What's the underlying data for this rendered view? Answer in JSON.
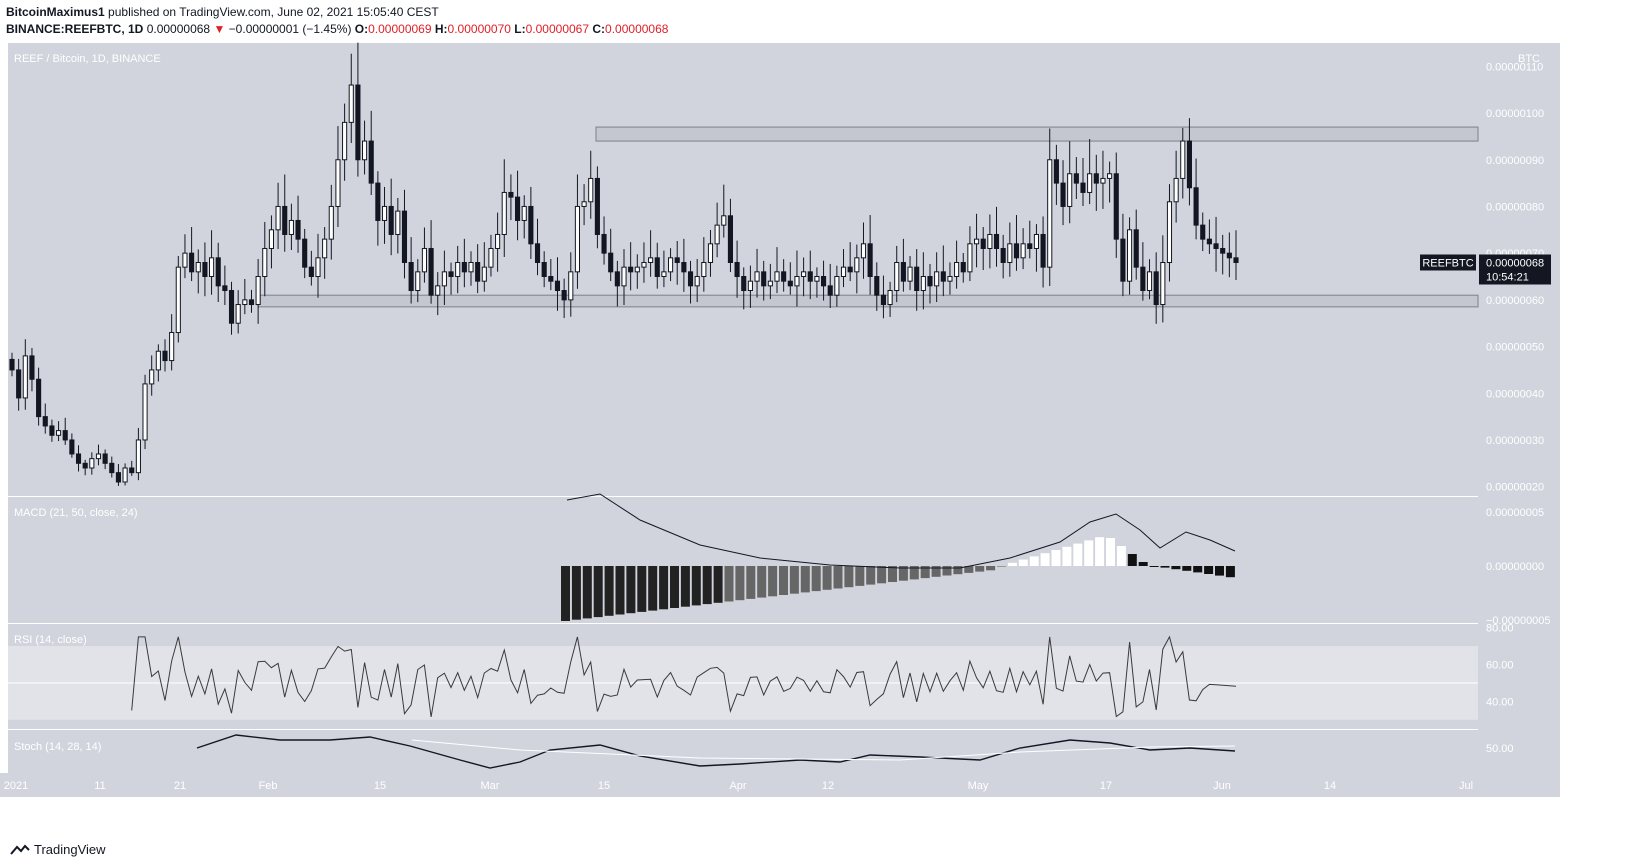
{
  "header": {
    "author": "BitcoinMaximus1",
    "published_text": "published on TradingView.com, June 02, 2021 15:05:40 CEST",
    "symbol_line": "BINANCE:REEFBTC, 1D",
    "last_price": "0.00000068",
    "change_arrow": "▼",
    "change": "−0.00000001 (−1.45%)",
    "o_label": "O:",
    "o_value": "0.00000069",
    "h_label": "H:",
    "h_value": "0.00000070",
    "l_label": "L:",
    "l_value": "0.00000067",
    "c_label": "C:",
    "c_value": "0.00000068"
  },
  "colors": {
    "pane_bg": "#d1d4dc",
    "band_light": "#e1e3e9",
    "candle_up": "#ffffff",
    "candle_down": "#131722",
    "label_bg": "#131722",
    "axis_text": "#ffffff"
  },
  "chart_data": [
    {
      "type": "candlestick",
      "title": "REEF / Bitcoin, 1D, BINANCE",
      "currency_label": "BTC",
      "price_tag": "REEFBTC",
      "price_tag_value": "0.00000068",
      "countdown": "10:54:21",
      "y_tick_labels": [
        "0.00000110",
        "0.00000100",
        "0.00000090",
        "0.00000080",
        "0.00000070",
        "0.00000060",
        "0.00000050",
        "0.00000040",
        "0.00000030",
        "0.00000020"
      ],
      "ylim": [
        1.8e-07,
        1.15e-06
      ],
      "x_tick_labels": [
        "2021",
        "11",
        "21",
        "Feb",
        "15",
        "Mar",
        "15",
        "Apr",
        "12",
        "May",
        "17",
        "Jun",
        "14",
        "Jul"
      ],
      "zones": [
        {
          "from": 9.4e-07,
          "to": 9.7e-07
        },
        {
          "from": 5.85e-07,
          "to": 6.1e-07
        }
      ],
      "closes": [
        4.5e-07,
        3.9e-07,
        4.8e-07,
        4.3e-07,
        3.5e-07,
        3.3e-07,
        3.1e-07,
        3.2e-07,
        3e-07,
        2.7e-07,
        2.5e-07,
        2.4e-07,
        2.6e-07,
        2.7e-07,
        2.5e-07,
        2.3e-07,
        2.1e-07,
        2.4e-07,
        2.3e-07,
        3e-07,
        4.2e-07,
        4.5e-07,
        4.9e-07,
        4.7e-07,
        5.3e-07,
        6.7e-07,
        7e-07,
        6.6e-07,
        6.8e-07,
        6.5e-07,
        6.9e-07,
        6.3e-07,
        6.2e-07,
        5.5e-07,
        5.9e-07,
        6e-07,
        5.9e-07,
        6.5e-07,
        7.1e-07,
        7.5e-07,
        8e-07,
        7.4e-07,
        7.7e-07,
        7.3e-07,
        6.7e-07,
        6.5e-07,
        6.9e-07,
        7.3e-07,
        8e-07,
        9e-07,
        9.8e-07,
        1.06e-06,
        9e-07,
        9.4e-07,
        8.5e-07,
        7.7e-07,
        8e-07,
        7.4e-07,
        7.9e-07,
        6.8e-07,
        6.2e-07,
        6.6e-07,
        7.1e-07,
        6.1e-07,
        6.3e-07,
        6.6e-07,
        6.5e-07,
        6.8e-07,
        6.6e-07,
        6.8e-07,
        6.4e-07,
        6.7e-07,
        7.1e-07,
        7.4e-07,
        8.3e-07,
        8.2e-07,
        7.7e-07,
        8e-07,
        7.2e-07,
        6.8e-07,
        6.5e-07,
        6.4e-07,
        6.2e-07,
        6e-07,
        6.6e-07,
        8e-07,
        8.1e-07,
        8.6e-07,
        7.4e-07,
        7e-07,
        6.6e-07,
        6.3e-07,
        6.7e-07,
        6.6e-07,
        6.7e-07,
        6.8e-07,
        6.9e-07,
        6.5e-07,
        6.6e-07,
        6.9e-07,
        6.8e-07,
        6.6e-07,
        6.3e-07,
        6.5e-07,
        6.8e-07,
        7.2e-07,
        7.6e-07,
        7.8e-07,
        6.8e-07,
        6.5e-07,
        6.2e-07,
        6.4e-07,
        6.6e-07,
        6.3e-07,
        6.4e-07,
        6.6e-07,
        6.4e-07,
        6.3e-07,
        6.5e-07,
        6.6e-07,
        6.4e-07,
        6.5e-07,
        6.3e-07,
        6.1e-07,
        6.5e-07,
        6.7e-07,
        6.6e-07,
        6.9e-07,
        7.2e-07,
        6.5e-07,
        6.1e-07,
        5.9e-07,
        6.2e-07,
        6.8e-07,
        6.4e-07,
        6.7e-07,
        6.2e-07,
        6.5e-07,
        6.3e-07,
        6.6e-07,
        6.4e-07,
        6.5e-07,
        6.8e-07,
        6.6e-07,
        7.2e-07,
        7.3e-07,
        7.1e-07,
        7.4e-07,
        7.1e-07,
        6.8e-07,
        7.2e-07,
        6.9e-07,
        7.2e-07,
        7.1e-07,
        7.4e-07,
        6.7e-07,
        9e-07,
        8.5e-07,
        8e-07,
        8.7e-07,
        8.5e-07,
        8.3e-07,
        8.7e-07,
        8.5e-07,
        8.6e-07,
        8.7e-07,
        7.3e-07,
        6.4e-07,
        7.5e-07,
        6.7e-07,
        6.2e-07,
        6.6e-07,
        5.9e-07,
        6.8e-07,
        8.1e-07,
        8.6e-07,
        9.4e-07,
        8.4e-07,
        7.6e-07,
        7.3e-07,
        7.2e-07,
        7.1e-07,
        7e-07,
        6.9e-07,
        6.8e-07
      ],
      "highs_lows_note": ""
    },
    {
      "type": "histogram-line",
      "title": "MACD (21, 50, close, 24)",
      "y_tick_labels": [
        "0.00000005",
        "0.00000000",
        "−0.00000005"
      ]
    },
    {
      "type": "line",
      "title": "RSI (14, close)",
      "y_tick_labels": [
        "80.00",
        "60.00",
        "40.00"
      ],
      "ylim": [
        25,
        82
      ],
      "band": [
        30,
        70
      ],
      "midline": 50
    },
    {
      "type": "line",
      "title": "Stoch (14, 28, 14)",
      "y_tick_labels": [
        "50.00"
      ]
    }
  ],
  "footer": {
    "brand": "TradingView"
  }
}
